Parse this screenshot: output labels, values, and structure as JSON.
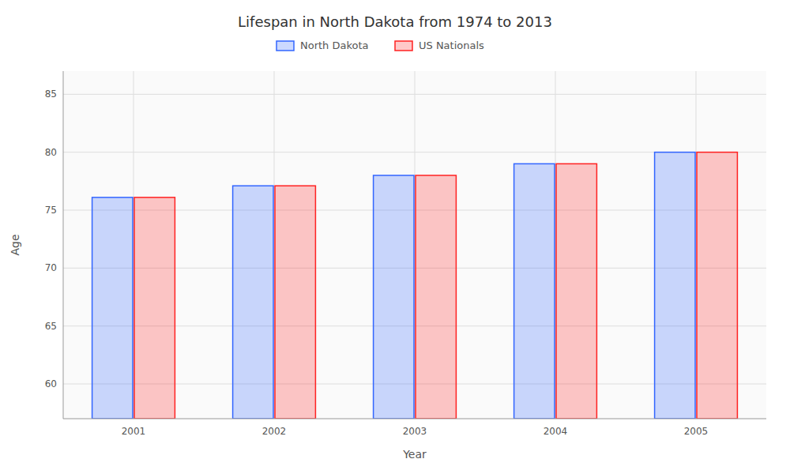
{
  "chart_data": {
    "type": "bar",
    "title": "Lifespan in North Dakota from 1974 to 2013",
    "x_label": "Year",
    "y_label": "Age",
    "categories": [
      "2001",
      "2002",
      "2003",
      "2004",
      "2005"
    ],
    "series": [
      {
        "name": "North Dakota",
        "color": "#3366ff",
        "values": [
          76.1,
          77.1,
          78.0,
          79.0,
          80.0
        ]
      },
      {
        "name": "US Nationals",
        "color": "#ff2222",
        "values": [
          76.1,
          77.1,
          78.0,
          79.0,
          80.0
        ]
      }
    ],
    "ylim": [
      57,
      87
    ],
    "yticks": [
      60,
      65,
      70,
      75,
      80,
      85
    ],
    "grid": true,
    "legend": "top"
  }
}
